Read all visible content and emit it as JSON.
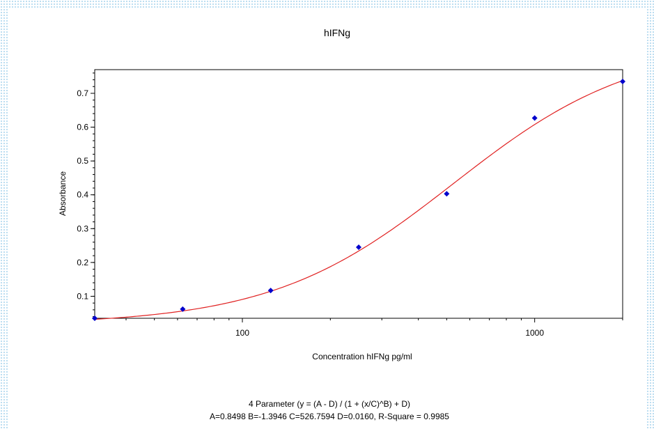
{
  "chart_data": {
    "type": "scatter",
    "title": "hIFNg",
    "xlabel": "Concentration hIFNg pg/ml",
    "ylabel": "Absorbance",
    "x_scale": "log",
    "xlim": [
      31.25,
      2000
    ],
    "ylim": [
      0.035,
      0.77
    ],
    "x_ticks": [
      100,
      1000
    ],
    "x_tick_labels": [
      "100",
      "1000"
    ],
    "y_ticks": [
      0.1,
      0.2,
      0.3,
      0.4,
      0.5,
      0.6,
      0.7
    ],
    "y_tick_labels": [
      "0.1",
      "0.2",
      "0.3",
      "0.4",
      "0.5",
      "0.6",
      "0.7"
    ],
    "grid": false,
    "series": [
      {
        "x": [
          31.25,
          62.5,
          125,
          250,
          500,
          1000,
          2000
        ],
        "y": [
          0.035,
          0.062,
          0.117,
          0.245,
          0.403,
          0.627,
          0.735
        ],
        "color": "#0000cc"
      }
    ],
    "fit": {
      "model": "4PL",
      "A": 0.8498,
      "B": -1.3946,
      "C": 526.7594,
      "D": 0.016,
      "color": "#e02020"
    },
    "equation_line": "4 Parameter (y = (A - D) / (1 + (x/C)^B) + D)",
    "params_line": "A=0.8498  B=-1.3946  C=526.7594  D=0.0160, R-Square = 0.9985"
  }
}
